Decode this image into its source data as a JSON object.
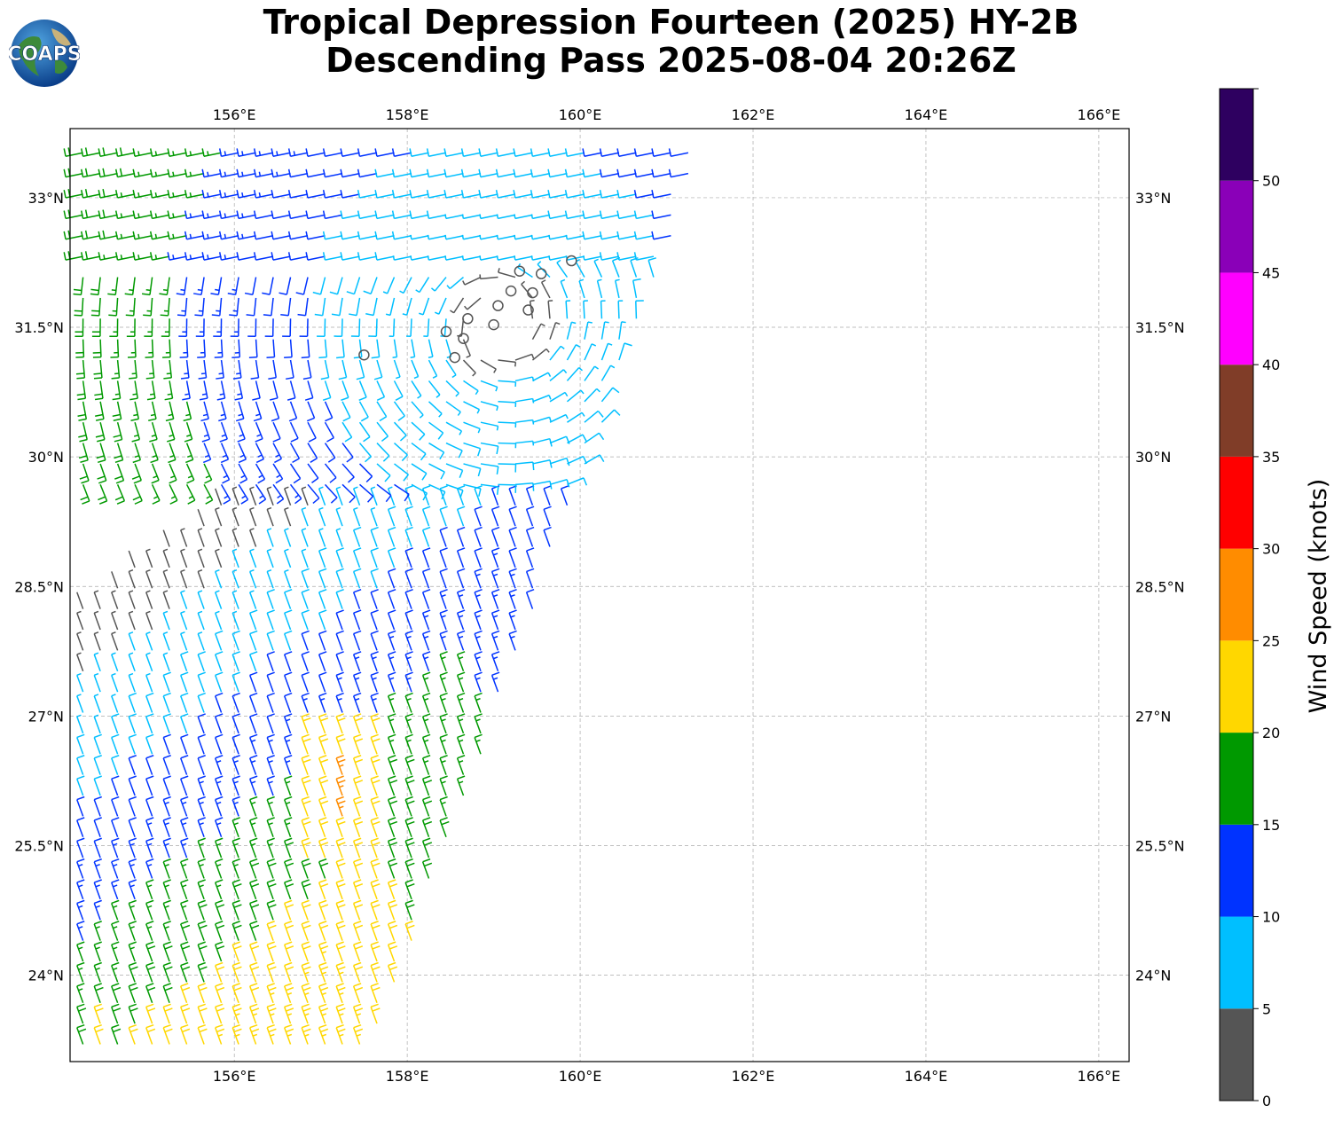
{
  "title": {
    "line1": "Tropical Depression Fourteen (2025) HY-2B",
    "line2": "Descending Pass 2025-08-04 20:26Z"
  },
  "logo": {
    "text": "COAPS",
    "icon": "globe-logo-icon"
  },
  "map": {
    "lon_range": [
      154.1,
      166.35
    ],
    "lat_range": [
      23.0,
      33.8
    ],
    "lon_ticks": [
      156,
      158,
      160,
      162,
      164,
      166
    ],
    "lat_ticks": [
      24,
      25.5,
      27,
      28.5,
      30,
      31.5,
      33
    ],
    "lon_labels": [
      "156°E",
      "158°E",
      "160°E",
      "162°E",
      "164°E",
      "166°E"
    ],
    "lat_labels": [
      "24°N",
      "25.5°N",
      "27°N",
      "28.5°N",
      "30°N",
      "31.5°N",
      "33°N"
    ],
    "gridlines": true,
    "swath": {
      "description_hidden": true
    },
    "calm_circles": [
      [
        159.3,
        32.15
      ],
      [
        159.55,
        32.12
      ],
      [
        159.9,
        32.27
      ],
      [
        159.2,
        31.92
      ],
      [
        159.45,
        31.9
      ],
      [
        159.05,
        31.75
      ],
      [
        159.4,
        31.7
      ],
      [
        158.7,
        31.6
      ],
      [
        159.0,
        31.53
      ],
      [
        158.45,
        31.45
      ],
      [
        158.65,
        31.37
      ],
      [
        158.55,
        31.15
      ],
      [
        157.5,
        31.18
      ]
    ]
  },
  "colorbar": {
    "label": "Wind Speed (knots)",
    "ticks": [
      0,
      5,
      10,
      15,
      20,
      25,
      30,
      35,
      40,
      45,
      50
    ],
    "max": 55,
    "colors": [
      "#555555",
      "#00bfff",
      "#0033ff",
      "#009900",
      "#ffd700",
      "#ff8c00",
      "#ff0000",
      "#803d28",
      "#ff00ff",
      "#8a00b8",
      "#2e0060"
    ]
  }
}
